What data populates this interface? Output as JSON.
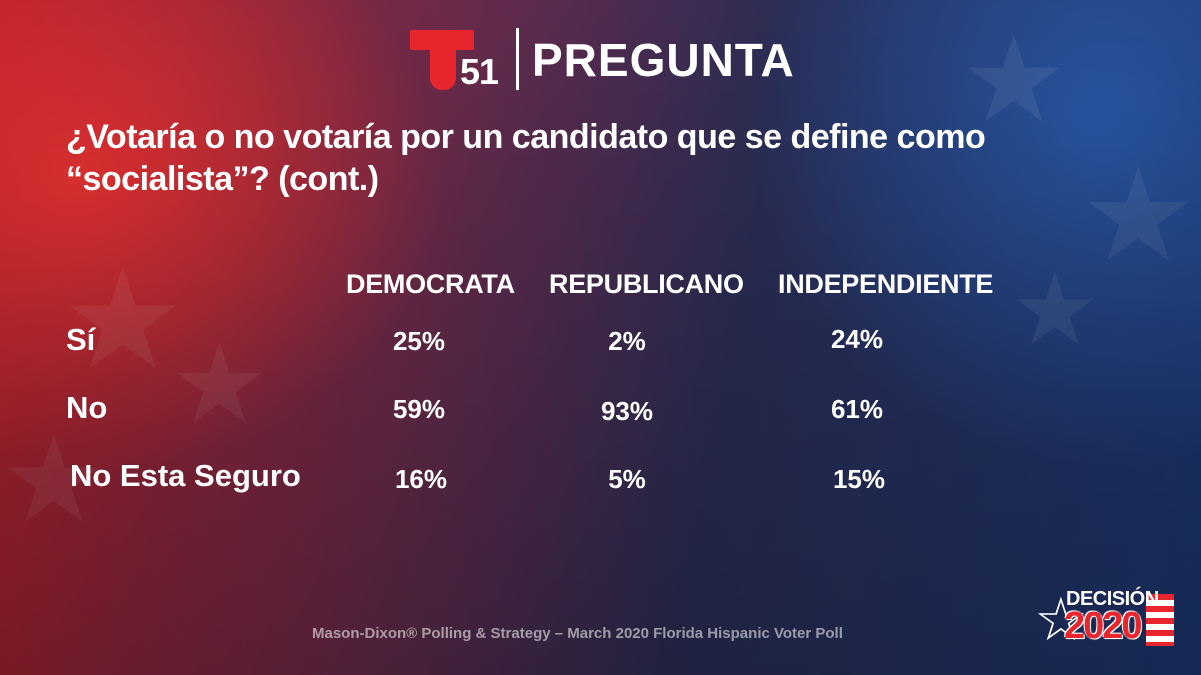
{
  "header": {
    "logo_number": "51",
    "title": "PREGUNTA"
  },
  "question": "¿Votaría o no votaría por un candidato que se define como “socialista”? (cont.)",
  "table": {
    "columns": [
      "DEMOCRATA",
      "REPUBLICANO",
      "INDEPENDIENTE"
    ],
    "rows": [
      {
        "label": "Sí",
        "values": [
          "25%",
          "2%",
          "24%"
        ]
      },
      {
        "label": "No",
        "values": [
          "59%",
          "93%",
          "61%"
        ]
      },
      {
        "label": "No Esta Seguro",
        "values": [
          "16%",
          "5%",
          "15%"
        ]
      }
    ]
  },
  "footer": {
    "source": "Mason-Dixon® Polling & Strategy – March 2020 Florida Hispanic Voter Poll",
    "badge_word": "DECISIÓN",
    "badge_year": "2020"
  },
  "colors": {
    "brand_red": "#e8262e",
    "navy": "#1c3670"
  }
}
